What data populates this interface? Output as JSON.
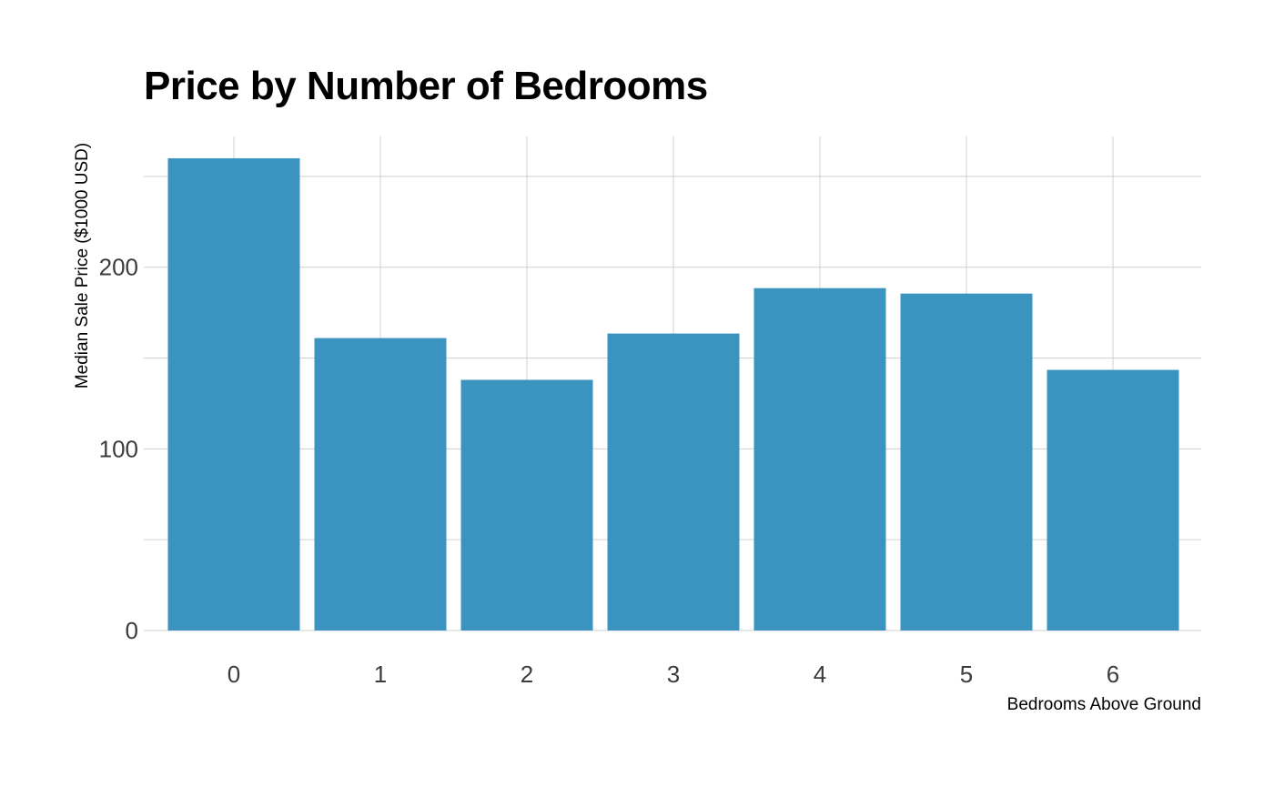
{
  "chart_data": {
    "type": "bar",
    "title": "Price by Number of Bedrooms",
    "xlabel": "Bedrooms Above Ground",
    "ylabel": "Median Sale Price ($1000 USD)",
    "categories": [
      "0",
      "1",
      "2",
      "3",
      "4",
      "5",
      "6"
    ],
    "values": [
      260,
      161,
      138,
      163.5,
      188.5,
      185.5,
      143.5
    ],
    "y_ticks": [
      0,
      100,
      200
    ],
    "y_minor_gridlines": [
      50,
      150,
      250
    ],
    "ylim": [
      0,
      272
    ],
    "grid": true,
    "legend": "none",
    "bar_color": "#3a94bf",
    "grid_color": "#d0d0d0"
  }
}
